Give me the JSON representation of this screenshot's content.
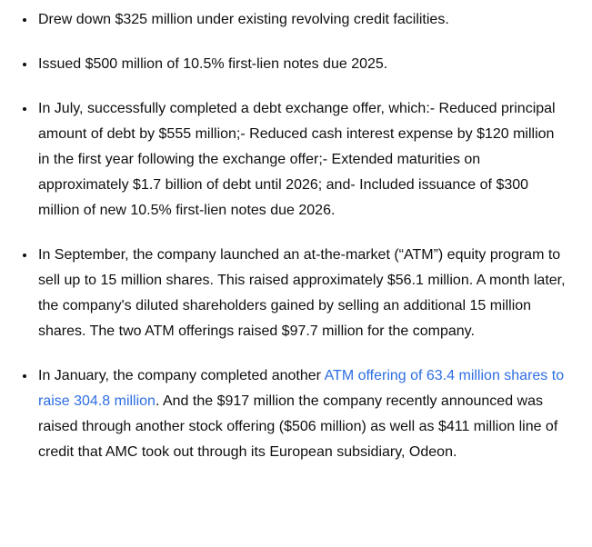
{
  "colors": {
    "background": "#ffffff",
    "text": "#0f0f0f",
    "link": "#2d6ee2"
  },
  "bullets": {
    "item1": {
      "text": "Drew down $325 million under existing revolving credit facilities."
    },
    "item2": {
      "text": "Issued $500 million of 10.5% first-lien notes due 2025."
    },
    "item3": {
      "text": "In July, successfully completed a debt exchange offer, which:- Reduced principal amount of debt by $555 million;- Reduced cash interest expense by $120 million in the first year following the exchange offer;- Extended maturities on approximately $1.7 billion of debt until 2026; and- Included issuance of $300 million of new 10.5% first-lien notes due 2026."
    },
    "item4": {
      "text": "In September, the company launched an at-the-market (“ATM”) equity program to sell up to 15 million shares. This raised approximately $56.1 million. A month later, the company's diluted shareholders gained by selling an additional 15 million shares. The two ATM offerings raised $97.7 million for the company."
    },
    "item5": {
      "before_link": "In January, the company completed another ",
      "link_text": "ATM offering of 63.4 million shares to raise 304.8 million",
      "after_link": ". And the $917 million the company recently announced was raised through another stock offering ($506 million) as well as $411 million line of credit that AMC took out through its European subsidiary, Odeon."
    }
  }
}
